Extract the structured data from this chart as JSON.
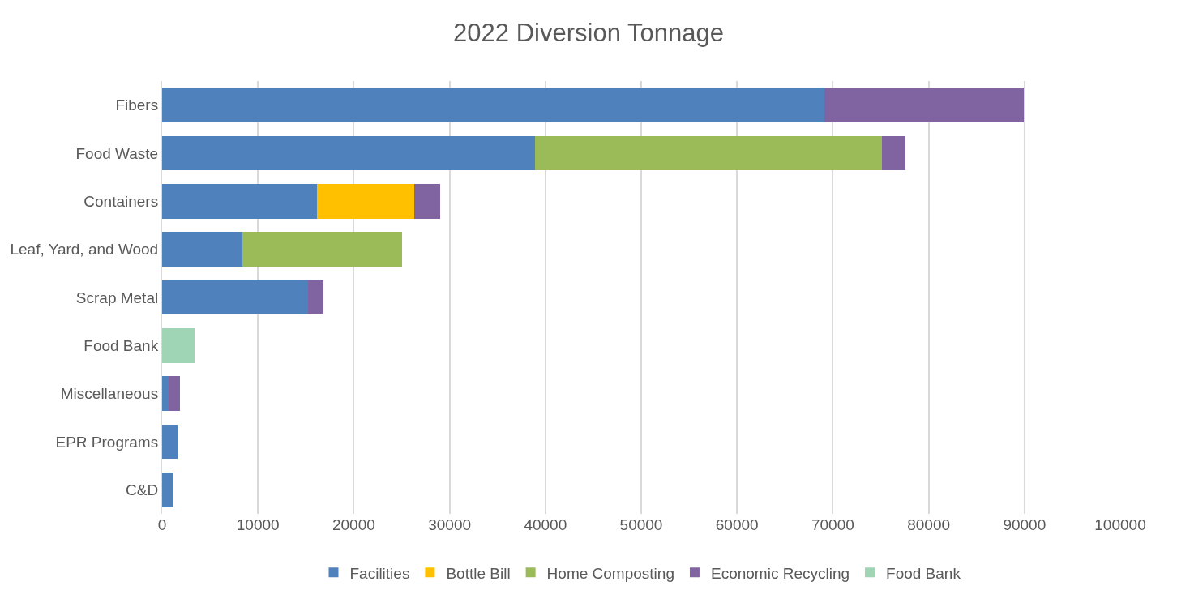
{
  "chart_data": {
    "type": "bar",
    "orientation": "horizontal",
    "stacked": true,
    "title": "2022 Diversion Tonnage",
    "categories": [
      "Fibers",
      "Food Waste",
      "Containers",
      "Leaf, Yard, and Wood",
      "Scrap Metal",
      "Food Bank",
      "Miscellaneous",
      "EPR Programs",
      "C&D"
    ],
    "series": [
      {
        "name": "Facilities",
        "color": "#4f81bd",
        "values": [
          69100,
          38900,
          16200,
          8400,
          15200,
          null,
          700,
          1600,
          1200
        ]
      },
      {
        "name": "Bottle Bill",
        "color": "#ffc000",
        "values": [
          null,
          null,
          10100,
          null,
          null,
          null,
          null,
          null,
          null
        ]
      },
      {
        "name": "Home Composting",
        "color": "#9bbb59",
        "values": [
          null,
          36200,
          null,
          16600,
          null,
          null,
          null,
          null,
          null
        ]
      },
      {
        "name": "Economic Recycling",
        "color": "#8064a2",
        "values": [
          20800,
          2500,
          2700,
          null,
          1600,
          null,
          1200,
          null,
          null
        ]
      },
      {
        "name": "Food Bank",
        "color": "#9fd4b4",
        "values": [
          null,
          null,
          null,
          null,
          null,
          3400,
          null,
          null,
          null
        ]
      }
    ],
    "xlim": [
      0,
      100000
    ],
    "xticks": [
      0,
      10000,
      20000,
      30000,
      40000,
      50000,
      60000,
      70000,
      80000,
      90000,
      100000
    ],
    "grid": "x",
    "legend": "bottom"
  }
}
